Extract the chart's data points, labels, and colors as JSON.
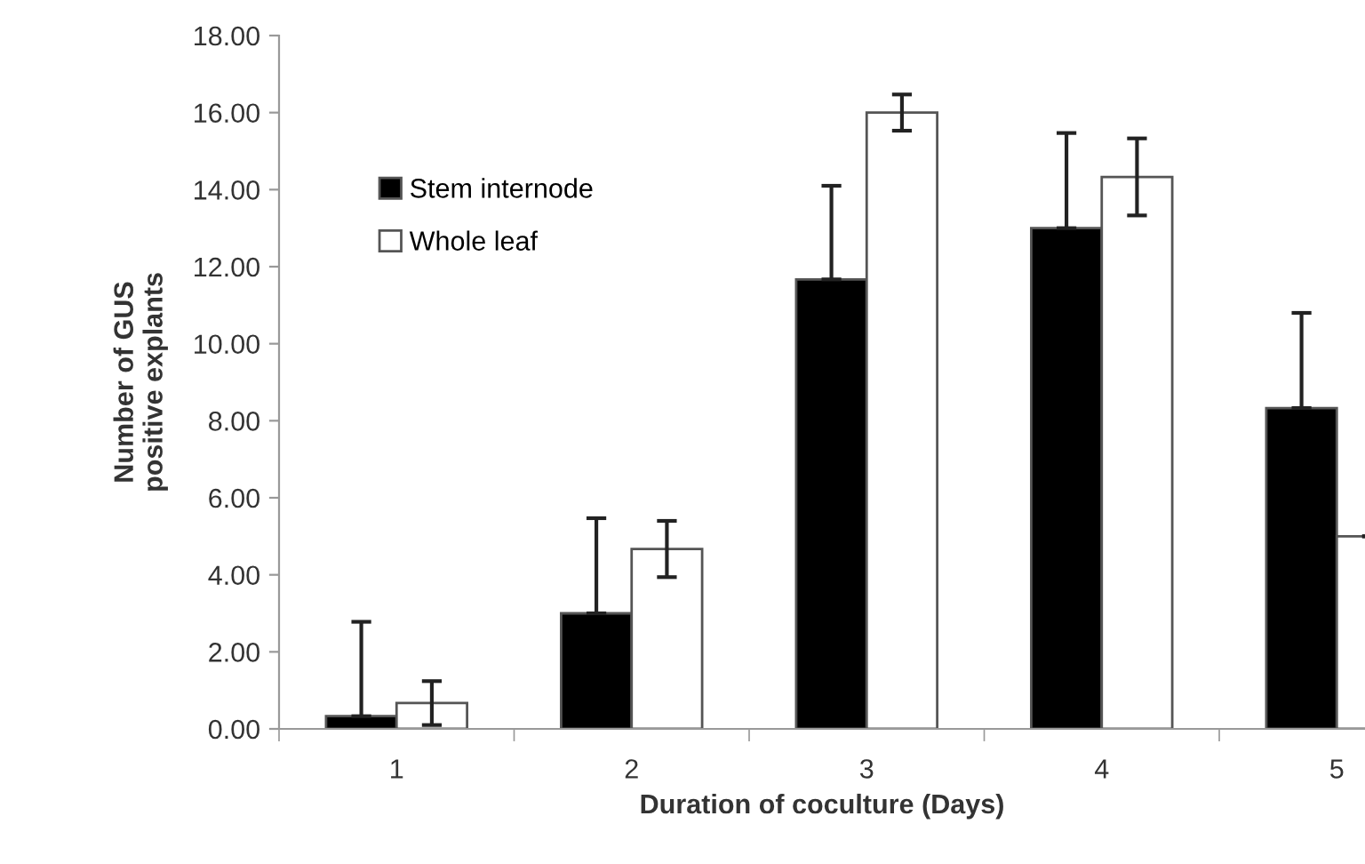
{
  "chart_data": {
    "type": "bar",
    "xlabel": "Duration of coculture (Days)",
    "ylabel": "Number of GUS\npositive explants",
    "categories": [
      "1",
      "2",
      "3",
      "4",
      "5"
    ],
    "series": [
      {
        "name": "Stem internode",
        "color": "#000000",
        "values": [
          0.33,
          3.0,
          11.67,
          13.0,
          8.33
        ],
        "errors": [
          [
            0.33,
            2.78
          ],
          [
            3.0,
            5.47
          ],
          [
            11.67,
            14.1
          ],
          [
            13.0,
            15.47
          ],
          [
            8.33,
            10.8
          ]
        ]
      },
      {
        "name": "Whole leaf",
        "color": "#ffffff",
        "values": [
          0.67,
          4.67,
          16.0,
          14.33,
          5.0
        ],
        "errors": [
          [
            0.1,
            1.24
          ],
          [
            3.94,
            5.4
          ],
          [
            15.53,
            16.47
          ],
          [
            13.33,
            15.33
          ],
          null
        ]
      }
    ],
    "ylim": [
      0,
      18
    ],
    "yticks": [
      {
        "value": 0,
        "label": "0.00"
      },
      {
        "value": 2,
        "label": "2.00"
      },
      {
        "value": 4,
        "label": "4.00"
      },
      {
        "value": 6,
        "label": "6.00"
      },
      {
        "value": 8,
        "label": "8.00"
      },
      {
        "value": 10,
        "label": "10.00"
      },
      {
        "value": 12,
        "label": "12.00"
      },
      {
        "value": 14,
        "label": "14.00"
      },
      {
        "value": 16,
        "label": "16.00"
      },
      {
        "value": 18,
        "label": "18.00"
      }
    ],
    "grid": false,
    "legend": "top left"
  }
}
